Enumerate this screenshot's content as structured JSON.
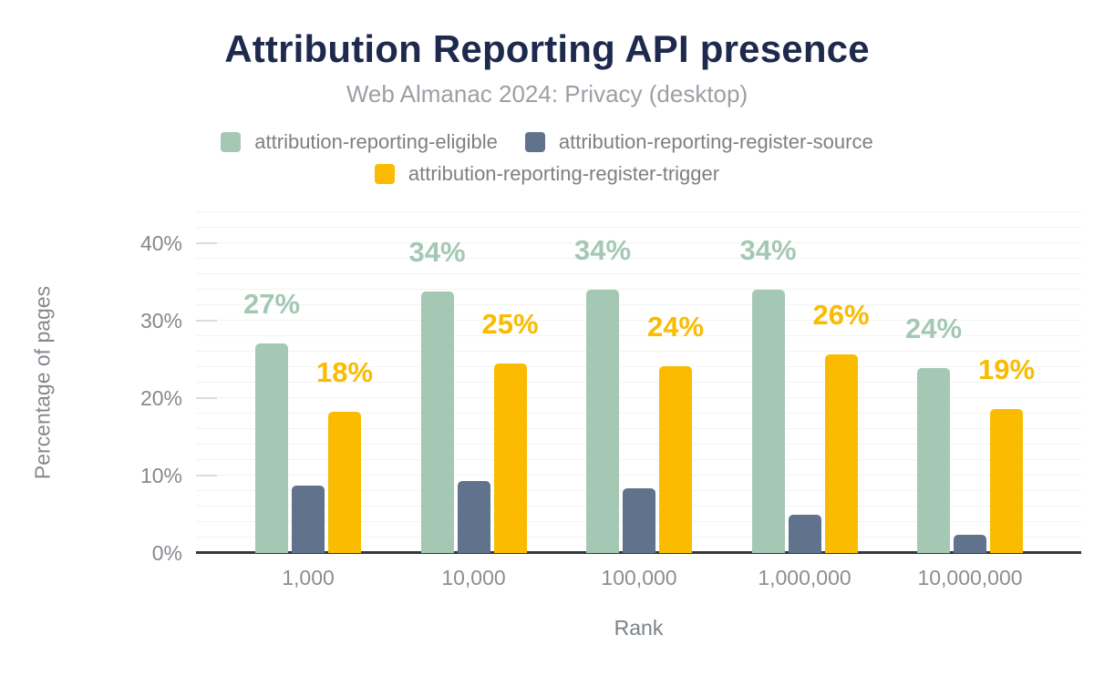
{
  "header": {
    "title": "Attribution Reporting API presence",
    "subtitle": "Web Almanac 2024: Privacy (desktop)"
  },
  "chart_data": {
    "type": "bar",
    "title": "Attribution Reporting API presence",
    "subtitle": "Web Almanac 2024: Privacy (desktop)",
    "categories": [
      "1,000",
      "10,000",
      "100,000",
      "1,000,000",
      "10,000,000"
    ],
    "series": [
      {
        "name": "attribution-reporting-eligible",
        "color": "#a5c8b4",
        "values": [
          27.1,
          33.8,
          34,
          34,
          23.9
        ],
        "labels": [
          "27%",
          "34%",
          "34%",
          "34%",
          "24%"
        ]
      },
      {
        "name": "attribution-reporting-register-source",
        "color": "#61728d",
        "values": [
          8.7,
          9.3,
          8.4,
          4.9,
          2.3
        ],
        "labels": [
          "",
          "",
          "",
          "",
          ""
        ]
      },
      {
        "name": "attribution-reporting-register-trigger",
        "color": "#fabb00",
        "values": [
          18.2,
          24.5,
          24.1,
          25.6,
          18.6
        ],
        "labels": [
          "18%",
          "25%",
          "24%",
          "26%",
          "19%"
        ]
      }
    ],
    "xlabel": "Rank",
    "ylabel": "Percentage of pages",
    "ylim": [
      0,
      44
    ],
    "yticks": [
      {
        "value": 0,
        "label": "0%"
      },
      {
        "value": 10,
        "label": "10%"
      },
      {
        "value": 20,
        "label": "20%"
      },
      {
        "value": 30,
        "label": "30%"
      },
      {
        "value": 40,
        "label": "40%"
      }
    ],
    "grid": true,
    "minor_grid_step_pct": 2,
    "legend_position": "top"
  },
  "colors": {
    "background": "#ffffff",
    "title": "#1e2a4d",
    "subtitle": "#9aa0a6",
    "axis_text": "#85898e",
    "legend_text": "#7c8085",
    "axis_line": "#32383e",
    "gridline": "#f2f3f5"
  }
}
